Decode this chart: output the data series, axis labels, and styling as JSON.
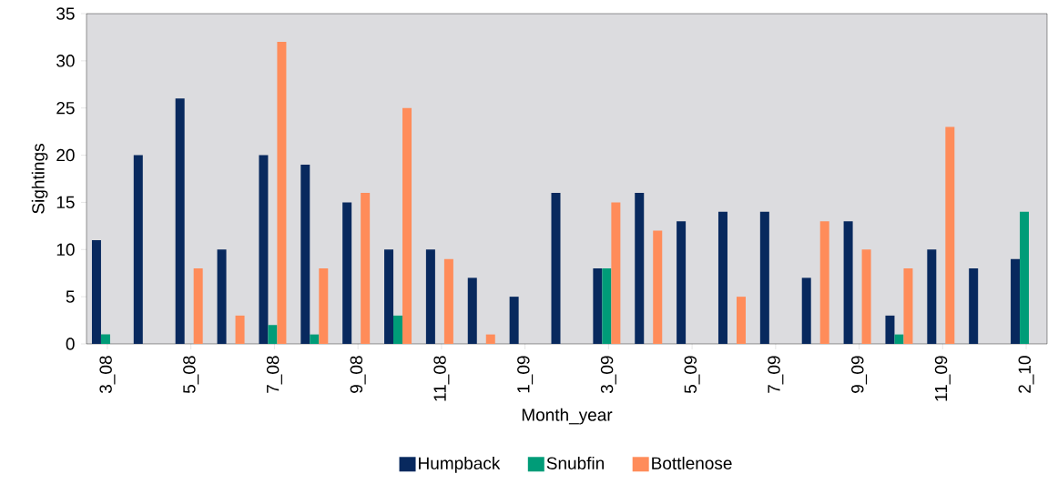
{
  "chart_data": {
    "type": "bar",
    "xlabel": "Month_year",
    "ylabel": "Sightings",
    "categories": [
      "3_08",
      null,
      "5_08",
      null,
      "7_08",
      null,
      "9_08",
      null,
      "11_08",
      null,
      "1_09",
      null,
      "3_09",
      null,
      "5_09",
      null,
      "7_09",
      null,
      "9_09",
      null,
      "11_09",
      null,
      "2_10"
    ],
    "series": [
      {
        "name": "Humpback",
        "color": "#08295e",
        "values": [
          11,
          20,
          26,
          10,
          20,
          19,
          15,
          10,
          10,
          7,
          5,
          16,
          8,
          16,
          13,
          14,
          14,
          7,
          13,
          3,
          10,
          8,
          9
        ]
      },
      {
        "name": "Snubfin",
        "color": "#009c78",
        "values": [
          1,
          0,
          0,
          0,
          2,
          1,
          0,
          3,
          0,
          0,
          0,
          0,
          8,
          0,
          0,
          0,
          0,
          0,
          0,
          1,
          0,
          0,
          14
        ]
      },
      {
        "name": "Bottlenose",
        "color": "#ff8c5a",
        "values": [
          0,
          0,
          8,
          3,
          32,
          8,
          16,
          25,
          9,
          1,
          0,
          0,
          15,
          12,
          0,
          5,
          0,
          13,
          10,
          8,
          23,
          0,
          0
        ]
      }
    ],
    "ylim": [
      0,
      35
    ],
    "yticks": [
      0,
      5,
      10,
      15,
      20,
      25,
      30,
      35
    ],
    "legend": "bottom"
  }
}
